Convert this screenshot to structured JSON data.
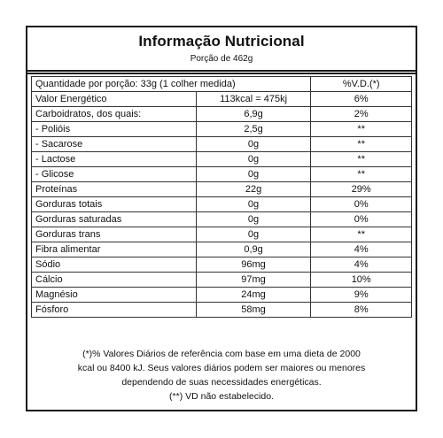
{
  "title": "Informação Nutricional",
  "portion": "Porção de 462g",
  "table": {
    "header": {
      "quantity": "Quantidade por porção: 33g (1 colher medida)",
      "vd": "%V.D.(*)"
    },
    "rows": [
      {
        "name": "Valor Energético",
        "amount": "113kcal = 475kj",
        "vd": "6%"
      },
      {
        "name": "Carboidratos, dos quais:",
        "amount": "6,9g",
        "vd": "2%"
      },
      {
        "name": " - Polióis",
        "amount": "2,5g",
        "vd": "**"
      },
      {
        "name": " - Sacarose",
        "amount": "0g",
        "vd": "**"
      },
      {
        "name": " - Lactose",
        "amount": "0g",
        "vd": "**"
      },
      {
        "name": " - Glicose",
        "amount": "0g",
        "vd": "**"
      },
      {
        "name": "Proteínas",
        "amount": "22g",
        "vd": "29%"
      },
      {
        "name": "Gorduras totais",
        "amount": "0g",
        "vd": "0%"
      },
      {
        "name": "Gorduras saturadas",
        "amount": "0g",
        "vd": "0%"
      },
      {
        "name": "Gorduras trans",
        "amount": "0g",
        "vd": "**"
      },
      {
        "name": "Fibra alimentar",
        "amount": "0,9g",
        "vd": "4%"
      },
      {
        "name": "Sódio",
        "amount": "96mg",
        "vd": "4%"
      },
      {
        "name": "Cálcio",
        "amount": "97mg",
        "vd": "10%"
      },
      {
        "name": "Magnésio",
        "amount": "24mg",
        "vd": "9%"
      },
      {
        "name": "Fósforo",
        "amount": "58mg",
        "vd": "8%"
      }
    ]
  },
  "footnote": {
    "line1": "(*)% Valores Diários de referência com base em uma dieta de 2000",
    "line2": "kcal ou 8400 kJ. Seus valores diários podem ser maiores ou menores",
    "line3": "dependendo de suas necessidades energéticas.",
    "line4": "(**) VD não estabelecido."
  }
}
